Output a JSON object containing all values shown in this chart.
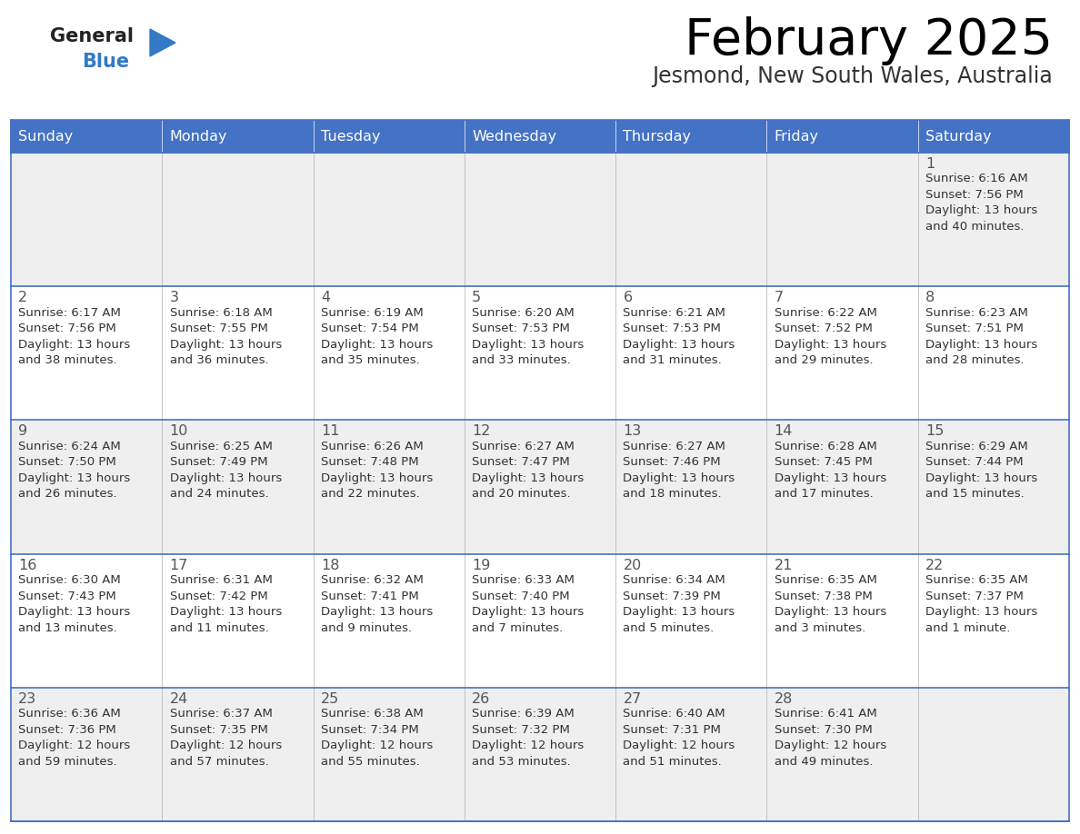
{
  "title": "February 2025",
  "subtitle": "Jesmond, New South Wales, Australia",
  "days_of_week": [
    "Sunday",
    "Monday",
    "Tuesday",
    "Wednesday",
    "Thursday",
    "Friday",
    "Saturday"
  ],
  "header_bg_color": "#4472C4",
  "header_text_color": "#FFFFFF",
  "cell_bg_white": "#FFFFFF",
  "cell_bg_gray": "#E8E8E8",
  "border_color": "#4472C4",
  "day_number_color": "#555555",
  "text_color": "#333333",
  "grid_line_color": "#BBBBBB",
  "logo_general_color": "#222222",
  "logo_blue_color": "#3379C4",
  "calendar_data": [
    [
      null,
      null,
      null,
      null,
      null,
      null,
      {
        "day": 1,
        "sunrise": "6:16 AM",
        "sunset": "7:56 PM",
        "daylight_line1": "Daylight: 13 hours",
        "daylight_line2": "and 40 minutes."
      }
    ],
    [
      {
        "day": 2,
        "sunrise": "6:17 AM",
        "sunset": "7:56 PM",
        "daylight_line1": "Daylight: 13 hours",
        "daylight_line2": "and 38 minutes."
      },
      {
        "day": 3,
        "sunrise": "6:18 AM",
        "sunset": "7:55 PM",
        "daylight_line1": "Daylight: 13 hours",
        "daylight_line2": "and 36 minutes."
      },
      {
        "day": 4,
        "sunrise": "6:19 AM",
        "sunset": "7:54 PM",
        "daylight_line1": "Daylight: 13 hours",
        "daylight_line2": "and 35 minutes."
      },
      {
        "day": 5,
        "sunrise": "6:20 AM",
        "sunset": "7:53 PM",
        "daylight_line1": "Daylight: 13 hours",
        "daylight_line2": "and 33 minutes."
      },
      {
        "day": 6,
        "sunrise": "6:21 AM",
        "sunset": "7:53 PM",
        "daylight_line1": "Daylight: 13 hours",
        "daylight_line2": "and 31 minutes."
      },
      {
        "day": 7,
        "sunrise": "6:22 AM",
        "sunset": "7:52 PM",
        "daylight_line1": "Daylight: 13 hours",
        "daylight_line2": "and 29 minutes."
      },
      {
        "day": 8,
        "sunrise": "6:23 AM",
        "sunset": "7:51 PM",
        "daylight_line1": "Daylight: 13 hours",
        "daylight_line2": "and 28 minutes."
      }
    ],
    [
      {
        "day": 9,
        "sunrise": "6:24 AM",
        "sunset": "7:50 PM",
        "daylight_line1": "Daylight: 13 hours",
        "daylight_line2": "and 26 minutes."
      },
      {
        "day": 10,
        "sunrise": "6:25 AM",
        "sunset": "7:49 PM",
        "daylight_line1": "Daylight: 13 hours",
        "daylight_line2": "and 24 minutes."
      },
      {
        "day": 11,
        "sunrise": "6:26 AM",
        "sunset": "7:48 PM",
        "daylight_line1": "Daylight: 13 hours",
        "daylight_line2": "and 22 minutes."
      },
      {
        "day": 12,
        "sunrise": "6:27 AM",
        "sunset": "7:47 PM",
        "daylight_line1": "Daylight: 13 hours",
        "daylight_line2": "and 20 minutes."
      },
      {
        "day": 13,
        "sunrise": "6:27 AM",
        "sunset": "7:46 PM",
        "daylight_line1": "Daylight: 13 hours",
        "daylight_line2": "and 18 minutes."
      },
      {
        "day": 14,
        "sunrise": "6:28 AM",
        "sunset": "7:45 PM",
        "daylight_line1": "Daylight: 13 hours",
        "daylight_line2": "and 17 minutes."
      },
      {
        "day": 15,
        "sunrise": "6:29 AM",
        "sunset": "7:44 PM",
        "daylight_line1": "Daylight: 13 hours",
        "daylight_line2": "and 15 minutes."
      }
    ],
    [
      {
        "day": 16,
        "sunrise": "6:30 AM",
        "sunset": "7:43 PM",
        "daylight_line1": "Daylight: 13 hours",
        "daylight_line2": "and 13 minutes."
      },
      {
        "day": 17,
        "sunrise": "6:31 AM",
        "sunset": "7:42 PM",
        "daylight_line1": "Daylight: 13 hours",
        "daylight_line2": "and 11 minutes."
      },
      {
        "day": 18,
        "sunrise": "6:32 AM",
        "sunset": "7:41 PM",
        "daylight_line1": "Daylight: 13 hours",
        "daylight_line2": "and 9 minutes."
      },
      {
        "day": 19,
        "sunrise": "6:33 AM",
        "sunset": "7:40 PM",
        "daylight_line1": "Daylight: 13 hours",
        "daylight_line2": "and 7 minutes."
      },
      {
        "day": 20,
        "sunrise": "6:34 AM",
        "sunset": "7:39 PM",
        "daylight_line1": "Daylight: 13 hours",
        "daylight_line2": "and 5 minutes."
      },
      {
        "day": 21,
        "sunrise": "6:35 AM",
        "sunset": "7:38 PM",
        "daylight_line1": "Daylight: 13 hours",
        "daylight_line2": "and 3 minutes."
      },
      {
        "day": 22,
        "sunrise": "6:35 AM",
        "sunset": "7:37 PM",
        "daylight_line1": "Daylight: 13 hours",
        "daylight_line2": "and 1 minute."
      }
    ],
    [
      {
        "day": 23,
        "sunrise": "6:36 AM",
        "sunset": "7:36 PM",
        "daylight_line1": "Daylight: 12 hours",
        "daylight_line2": "and 59 minutes."
      },
      {
        "day": 24,
        "sunrise": "6:37 AM",
        "sunset": "7:35 PM",
        "daylight_line1": "Daylight: 12 hours",
        "daylight_line2": "and 57 minutes."
      },
      {
        "day": 25,
        "sunrise": "6:38 AM",
        "sunset": "7:34 PM",
        "daylight_line1": "Daylight: 12 hours",
        "daylight_line2": "and 55 minutes."
      },
      {
        "day": 26,
        "sunrise": "6:39 AM",
        "sunset": "7:32 PM",
        "daylight_line1": "Daylight: 12 hours",
        "daylight_line2": "and 53 minutes."
      },
      {
        "day": 27,
        "sunrise": "6:40 AM",
        "sunset": "7:31 PM",
        "daylight_line1": "Daylight: 12 hours",
        "daylight_line2": "and 51 minutes."
      },
      {
        "day": 28,
        "sunrise": "6:41 AM",
        "sunset": "7:30 PM",
        "daylight_line1": "Daylight: 12 hours",
        "daylight_line2": "and 49 minutes."
      },
      null
    ]
  ],
  "row_bg_colors": [
    "#EFEFEF",
    "#FFFFFF",
    "#EFEFEF",
    "#FFFFFF",
    "#EFEFEF"
  ]
}
